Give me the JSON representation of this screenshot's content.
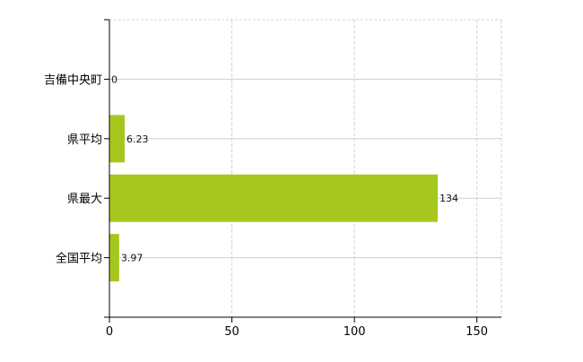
{
  "chart_data": {
    "type": "bar",
    "orientation": "horizontal",
    "categories": [
      "吉備中央町",
      "県平均",
      "県最大",
      "全国平均"
    ],
    "values": [
      0,
      6.23,
      134,
      3.97
    ],
    "data_labels": [
      "0",
      "6.23",
      "134",
      "3.97"
    ],
    "x_ticks": [
      "0",
      "50",
      "100",
      "150"
    ],
    "xlim": [
      0,
      160
    ],
    "grid": true,
    "bar_color": "#a6c81e",
    "title": "",
    "xlabel": "",
    "ylabel": ""
  }
}
